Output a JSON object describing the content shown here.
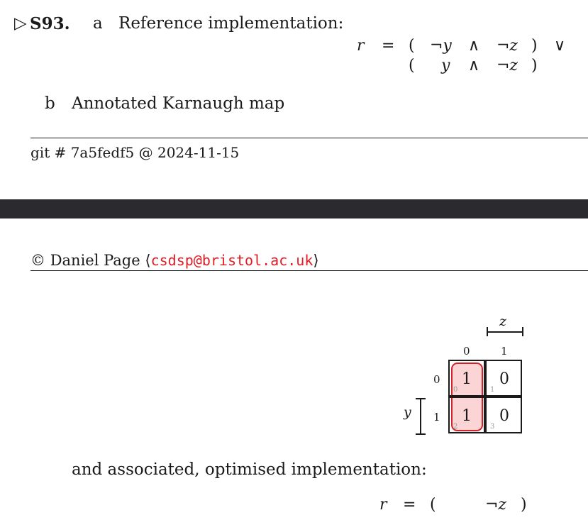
{
  "solution": {
    "marker": "▷",
    "number": "S93.",
    "part_a": {
      "letter": "a",
      "text": "Reference implementation:"
    },
    "part_b": {
      "letter": "b",
      "text": "Annotated Karnaugh map"
    },
    "equation_a": {
      "lhs": "r",
      "eq": "=",
      "row1": {
        "open": "(",
        "t1": "¬y",
        "op": "∧",
        "t2": "¬z",
        "close": ")",
        "join": "∨"
      },
      "row2": {
        "open": "(",
        "t1": "y",
        "op": "∧",
        "t2": "¬z",
        "close": ")"
      }
    },
    "follow_text": "and associated, optimised implementation:",
    "equation_b": {
      "lhs": "r",
      "eq": "=",
      "open": "(",
      "term": "¬z",
      "close": ")"
    }
  },
  "footer": {
    "git": "git # 7a5fedf5 @ 2024-11-15",
    "copyright_symbol": "©",
    "author": "Daniel Page",
    "lang": "⟨",
    "email": "csdsp@bristol.ac.uk",
    "rang": "⟩"
  },
  "kmap": {
    "col_var": "z",
    "row_var": "y",
    "col_headers": [
      "0",
      "1"
    ],
    "row_headers": [
      "0",
      "1"
    ],
    "cells": [
      {
        "value": "1",
        "index": "0"
      },
      {
        "value": "0",
        "index": "1"
      },
      {
        "value": "1",
        "index": "2"
      },
      {
        "value": "0",
        "index": "3"
      }
    ],
    "group_fill": "#fbd5d5",
    "group_border": "#d3232a"
  }
}
